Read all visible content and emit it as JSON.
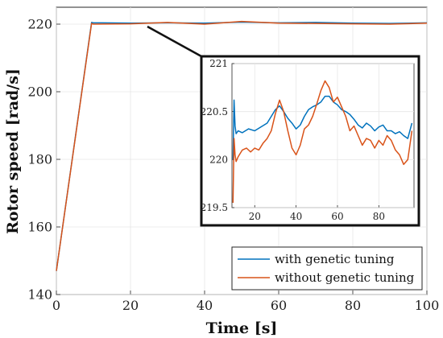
{
  "chart_data": [
    {
      "id": "main",
      "type": "line",
      "xlabel": "Time [s]",
      "ylabel": "Rotor speed [rad/s]",
      "xlim": [
        0,
        100
      ],
      "ylim": [
        140,
        225
      ],
      "xticks": [
        0,
        20,
        40,
        60,
        80,
        100
      ],
      "yticks": [
        140,
        160,
        180,
        200,
        220
      ],
      "grid": true,
      "legend_position": "bottom-right",
      "series": [
        {
          "name": "with genetic tuning",
          "color": "#0072BD",
          "x": [
            0,
            9.5,
            10,
            20,
            30,
            40,
            50,
            60,
            70,
            80,
            90,
            100
          ],
          "y": [
            147,
            220.5,
            220.4,
            220.3,
            220.4,
            220.3,
            220.6,
            220.4,
            220.5,
            220.3,
            220.2,
            220.4
          ]
        },
        {
          "name": "without genetic tuning",
          "color": "#D95319",
          "x": [
            0,
            9.5,
            10,
            20,
            30,
            40,
            50,
            60,
            70,
            80,
            90,
            100
          ],
          "y": [
            147,
            220.2,
            220.0,
            220.1,
            220.5,
            220.0,
            220.8,
            220.3,
            220.2,
            220.1,
            220.0,
            220.3
          ]
        }
      ]
    },
    {
      "id": "inset",
      "type": "line",
      "xlim": [
        9,
        97
      ],
      "ylim": [
        219.5,
        221
      ],
      "xticks": [
        20,
        40,
        60,
        80
      ],
      "yticks": [
        219.5,
        220,
        220.5,
        221
      ],
      "grid": true,
      "series": [
        {
          "name": "with genetic tuning",
          "color": "#0072BD",
          "x": [
            9.5,
            10,
            10.5,
            11,
            12,
            14,
            17,
            20,
            23,
            26,
            28,
            30,
            32,
            34,
            36,
            38,
            40,
            42,
            44,
            46,
            48,
            50,
            52,
            54,
            56,
            58,
            60,
            62,
            64,
            66,
            68,
            70,
            72,
            74,
            76,
            78,
            80,
            82,
            84,
            86,
            88,
            90,
            92,
            94,
            96
          ],
          "y": [
            220.0,
            220.62,
            220.35,
            220.27,
            220.3,
            220.28,
            220.32,
            220.3,
            220.34,
            220.38,
            220.45,
            220.52,
            220.56,
            220.5,
            220.43,
            220.38,
            220.32,
            220.36,
            220.45,
            220.52,
            220.55,
            220.57,
            220.6,
            220.66,
            220.66,
            220.6,
            220.57,
            220.52,
            220.5,
            220.47,
            220.42,
            220.36,
            220.33,
            220.38,
            220.35,
            220.3,
            220.34,
            220.36,
            220.3,
            220.3,
            220.27,
            220.29,
            220.25,
            220.22,
            220.38
          ]
        },
        {
          "name": "without genetic tuning",
          "color": "#D95319",
          "x": [
            9.5,
            10,
            10.5,
            11,
            12,
            14,
            16,
            18,
            20,
            22,
            24,
            26,
            28,
            30,
            32,
            34,
            36,
            38,
            40,
            42,
            44,
            46,
            48,
            50,
            52,
            54,
            56,
            58,
            60,
            62,
            64,
            66,
            68,
            70,
            72,
            74,
            76,
            78,
            80,
            82,
            84,
            86,
            88,
            90,
            92,
            94,
            96
          ],
          "y": [
            219.55,
            220.22,
            220.05,
            219.98,
            220.03,
            220.1,
            220.12,
            220.08,
            220.12,
            220.1,
            220.17,
            220.22,
            220.3,
            220.48,
            220.62,
            220.5,
            220.3,
            220.12,
            220.05,
            220.15,
            220.32,
            220.36,
            220.45,
            220.58,
            220.72,
            220.82,
            220.75,
            220.6,
            220.65,
            220.55,
            220.45,
            220.3,
            220.35,
            220.25,
            220.15,
            220.22,
            220.2,
            220.12,
            220.2,
            220.15,
            220.25,
            220.2,
            220.1,
            220.05,
            219.95,
            220.0,
            220.3
          ]
        }
      ]
    }
  ]
}
